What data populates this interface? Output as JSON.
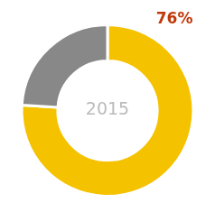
{
  "chart_data": {
    "type": "doughnut",
    "values": [
      76,
      24
    ],
    "colors": [
      "#F5C200",
      "#888888"
    ],
    "annotations": [
      {
        "text": "2015",
        "color": "#bbbbbb"
      },
      {
        "text": "76%",
        "color": "#C0390B"
      }
    ]
  }
}
